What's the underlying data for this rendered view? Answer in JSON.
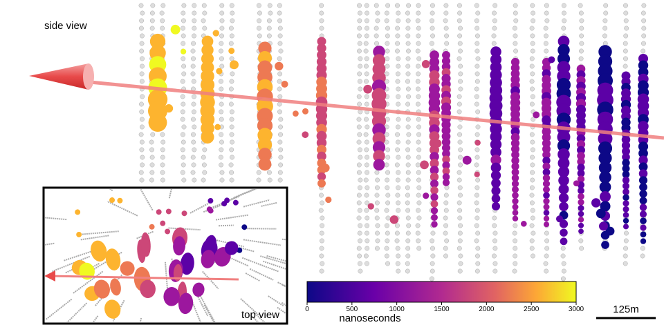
{
  "labels": {
    "side_view": "side view",
    "top_view": "top view",
    "scale": "125m"
  },
  "colorbar": {
    "label": "nanoseconds",
    "range": [
      0,
      3000
    ],
    "ticks": [
      0,
      500,
      1000,
      1500,
      2000,
      2500,
      3000
    ]
  }
}
